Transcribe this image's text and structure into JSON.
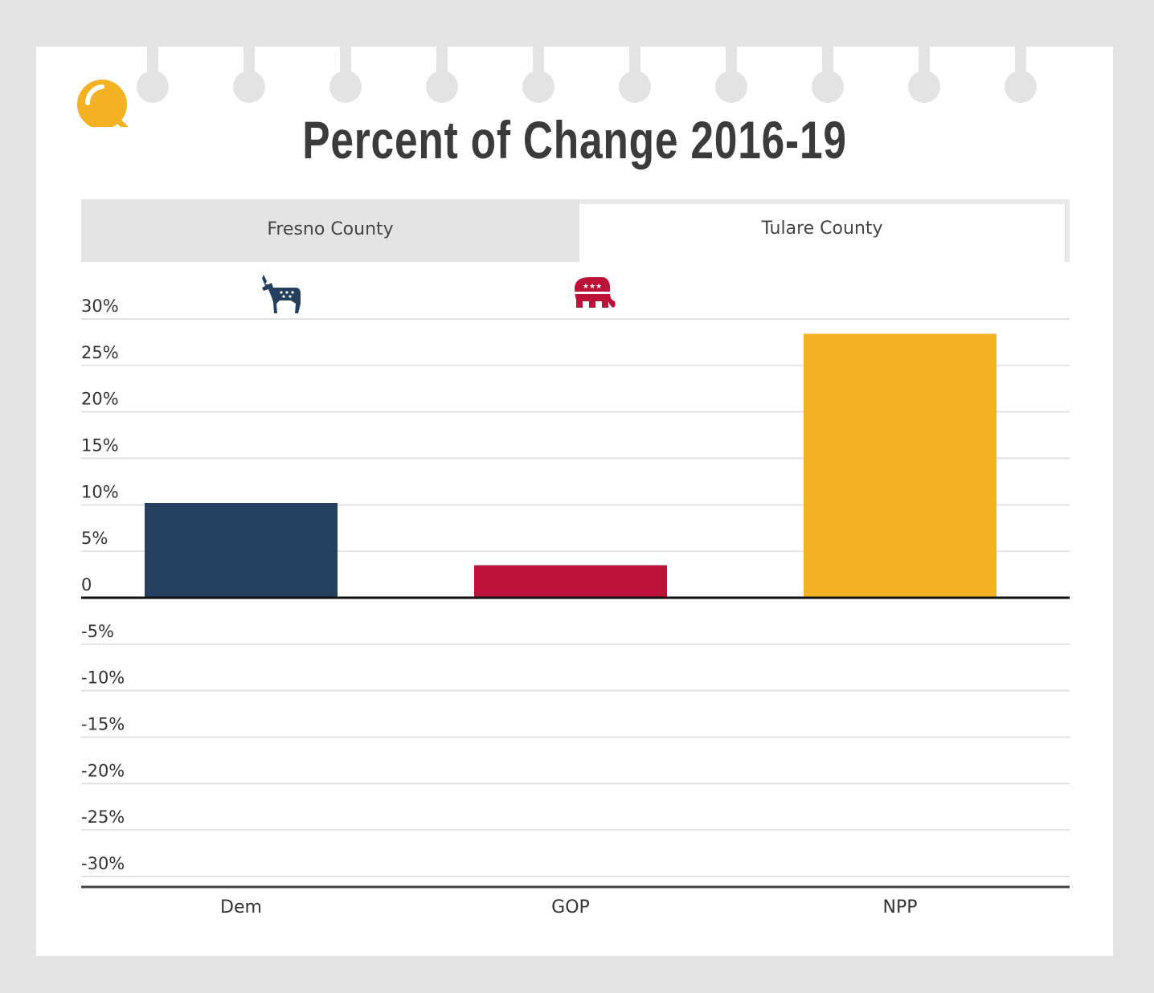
{
  "title": "Percent of Change 2016-19",
  "tabs": [
    {
      "label": "Fresno County",
      "active": false
    },
    {
      "label": "Tulare County",
      "active": true
    }
  ],
  "icons": {
    "logo": "magnifying-glass-icon",
    "dem": "democrat-donkey-icon",
    "gop": "republican-elephant-icon"
  },
  "colors": {
    "dem": "#25405f",
    "gop": "#bd1238",
    "npp": "#f4b223",
    "accent": "#f4b223"
  },
  "chart_data": {
    "type": "bar",
    "title": "Percent of Change 2016-19",
    "categories": [
      "Dem",
      "GOP",
      "NPP"
    ],
    "values": [
      10.2,
      3.5,
      28.4
    ],
    "ylim": [
      -30,
      30
    ],
    "yticks": [
      30,
      25,
      20,
      15,
      10,
      5,
      0,
      -5,
      -10,
      -15,
      -20,
      -25,
      -30
    ],
    "ytick_labels": [
      "30%",
      "25%",
      "20%",
      "15%",
      "10%",
      "5%",
      "0",
      "-5%",
      "-10%",
      "-15%",
      "-20%",
      "-25%",
      "-30%"
    ],
    "grid": true,
    "legend": "none"
  }
}
